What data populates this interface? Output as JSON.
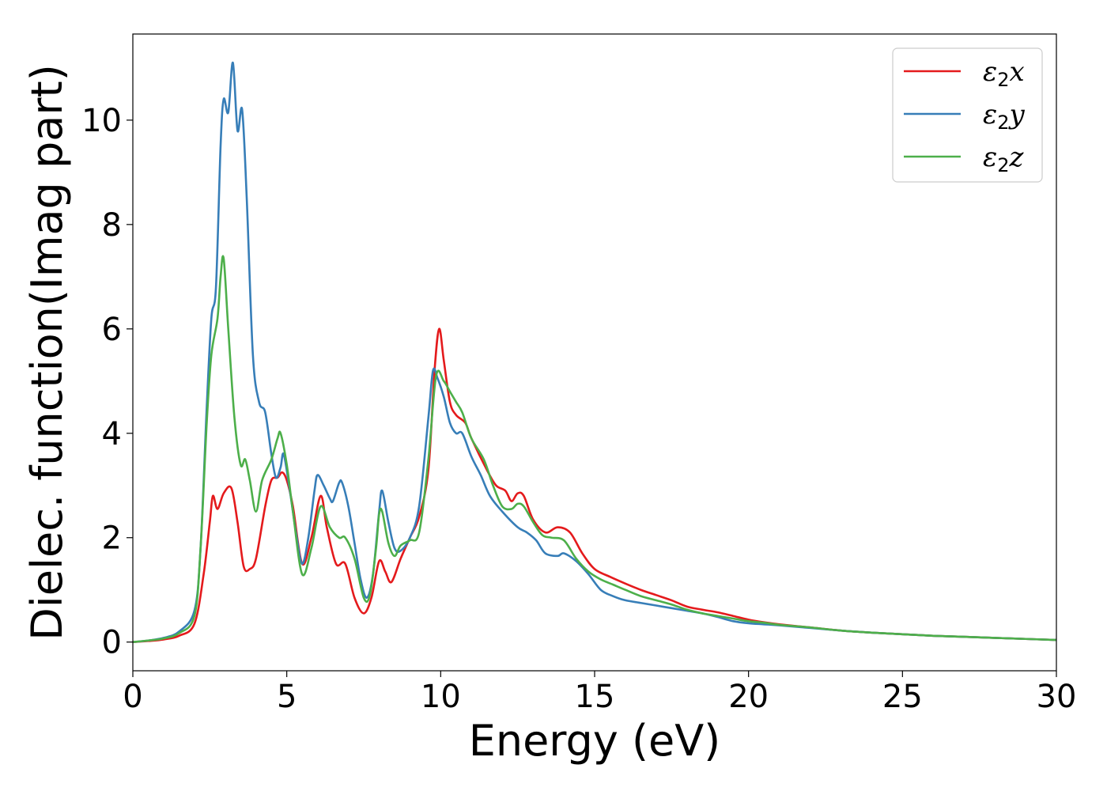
{
  "chart_data": {
    "type": "line",
    "title": "",
    "xlabel": "Energy (eV)",
    "ylabel": "Dielec. function(Imag part)",
    "xlim": [
      0,
      30
    ],
    "ylim": [
      -0.55,
      11.65
    ],
    "xticks": [
      0,
      5,
      10,
      15,
      20,
      25,
      30
    ],
    "yticks": [
      0,
      2,
      4,
      6,
      8,
      10
    ],
    "grid": false,
    "legend_position": "top-right",
    "series": [
      {
        "name": "ε2x",
        "legend": {
          "base": "ε",
          "sub": "2",
          "suffix": "x"
        },
        "color": "#e41a1c",
        "points": [
          [
            0,
            0
          ],
          [
            0.5,
            0.02
          ],
          [
            1,
            0.05
          ],
          [
            1.5,
            0.12
          ],
          [
            2,
            0.35
          ],
          [
            2.3,
            1.3
          ],
          [
            2.5,
            2.3
          ],
          [
            2.6,
            2.8
          ],
          [
            2.75,
            2.55
          ],
          [
            2.95,
            2.85
          ],
          [
            3.2,
            2.95
          ],
          [
            3.4,
            2.3
          ],
          [
            3.6,
            1.45
          ],
          [
            3.8,
            1.4
          ],
          [
            4.0,
            1.6
          ],
          [
            4.3,
            2.6
          ],
          [
            4.5,
            3.1
          ],
          [
            4.7,
            3.15
          ],
          [
            4.85,
            3.25
          ],
          [
            5.0,
            3.1
          ],
          [
            5.2,
            2.6
          ],
          [
            5.5,
            1.5
          ],
          [
            5.8,
            2.0
          ],
          [
            6.1,
            2.8
          ],
          [
            6.3,
            2.2
          ],
          [
            6.6,
            1.5
          ],
          [
            6.9,
            1.5
          ],
          [
            7.2,
            0.85
          ],
          [
            7.5,
            0.55
          ],
          [
            7.75,
            0.85
          ],
          [
            8.0,
            1.55
          ],
          [
            8.2,
            1.35
          ],
          [
            8.4,
            1.15
          ],
          [
            8.7,
            1.6
          ],
          [
            9.0,
            2.0
          ],
          [
            9.3,
            2.4
          ],
          [
            9.6,
            3.3
          ],
          [
            9.8,
            5.2
          ],
          [
            9.95,
            6.0
          ],
          [
            10.1,
            5.4
          ],
          [
            10.3,
            4.6
          ],
          [
            10.5,
            4.35
          ],
          [
            10.8,
            4.2
          ],
          [
            11.0,
            3.9
          ],
          [
            11.5,
            3.3
          ],
          [
            11.8,
            3.0
          ],
          [
            12.1,
            2.9
          ],
          [
            12.3,
            2.7
          ],
          [
            12.5,
            2.85
          ],
          [
            12.7,
            2.8
          ],
          [
            13.0,
            2.35
          ],
          [
            13.4,
            2.1
          ],
          [
            13.8,
            2.2
          ],
          [
            14.2,
            2.1
          ],
          [
            14.6,
            1.7
          ],
          [
            15.0,
            1.4
          ],
          [
            15.5,
            1.25
          ],
          [
            16.0,
            1.12
          ],
          [
            16.5,
            1.0
          ],
          [
            17.0,
            0.9
          ],
          [
            17.5,
            0.8
          ],
          [
            18.0,
            0.68
          ],
          [
            18.5,
            0.62
          ],
          [
            19.0,
            0.57
          ],
          [
            19.5,
            0.5
          ],
          [
            20.0,
            0.43
          ],
          [
            20.5,
            0.38
          ],
          [
            21.0,
            0.34
          ],
          [
            22.0,
            0.28
          ],
          [
            23.0,
            0.22
          ],
          [
            24.0,
            0.18
          ],
          [
            25.0,
            0.15
          ],
          [
            26.0,
            0.12
          ],
          [
            27.0,
            0.1
          ],
          [
            28.0,
            0.08
          ],
          [
            29.0,
            0.06
          ],
          [
            30.0,
            0.04
          ]
        ]
      },
      {
        "name": "ε2y",
        "legend": {
          "base": "ε",
          "sub": "2",
          "suffix": "y"
        },
        "color": "#377eb8",
        "points": [
          [
            0,
            0
          ],
          [
            0.5,
            0.03
          ],
          [
            1,
            0.08
          ],
          [
            1.5,
            0.2
          ],
          [
            2,
            0.6
          ],
          [
            2.2,
            1.8
          ],
          [
            2.4,
            4.5
          ],
          [
            2.55,
            6.2
          ],
          [
            2.7,
            6.8
          ],
          [
            2.85,
            9.5
          ],
          [
            2.95,
            10.4
          ],
          [
            3.1,
            10.15
          ],
          [
            3.25,
            11.1
          ],
          [
            3.4,
            9.8
          ],
          [
            3.55,
            10.2
          ],
          [
            3.7,
            8.5
          ],
          [
            3.9,
            5.5
          ],
          [
            4.1,
            4.6
          ],
          [
            4.3,
            4.4
          ],
          [
            4.5,
            3.6
          ],
          [
            4.65,
            3.15
          ],
          [
            4.8,
            3.35
          ],
          [
            4.9,
            3.6
          ],
          [
            5.1,
            2.9
          ],
          [
            5.3,
            2.1
          ],
          [
            5.5,
            1.5
          ],
          [
            5.7,
            2.0
          ],
          [
            5.9,
            2.9
          ],
          [
            6.0,
            3.2
          ],
          [
            6.2,
            3.0
          ],
          [
            6.4,
            2.75
          ],
          [
            6.5,
            2.7
          ],
          [
            6.7,
            3.05
          ],
          [
            6.8,
            3.05
          ],
          [
            7.0,
            2.6
          ],
          [
            7.2,
            1.9
          ],
          [
            7.4,
            1.2
          ],
          [
            7.6,
            0.85
          ],
          [
            7.8,
            1.3
          ],
          [
            8.0,
            2.5
          ],
          [
            8.1,
            2.9
          ],
          [
            8.3,
            2.3
          ],
          [
            8.5,
            1.8
          ],
          [
            8.7,
            1.75
          ],
          [
            9.0,
            2.0
          ],
          [
            9.3,
            2.6
          ],
          [
            9.6,
            4.3
          ],
          [
            9.75,
            5.2
          ],
          [
            9.9,
            5.05
          ],
          [
            10.1,
            4.7
          ],
          [
            10.3,
            4.2
          ],
          [
            10.5,
            4.0
          ],
          [
            10.7,
            4.0
          ],
          [
            11.0,
            3.55
          ],
          [
            11.3,
            3.2
          ],
          [
            11.6,
            2.8
          ],
          [
            12.0,
            2.5
          ],
          [
            12.5,
            2.2
          ],
          [
            12.8,
            2.1
          ],
          [
            13.1,
            1.95
          ],
          [
            13.4,
            1.7
          ],
          [
            13.8,
            1.65
          ],
          [
            14.0,
            1.7
          ],
          [
            14.4,
            1.55
          ],
          [
            14.8,
            1.3
          ],
          [
            15.2,
            1.0
          ],
          [
            15.6,
            0.88
          ],
          [
            16.0,
            0.8
          ],
          [
            16.5,
            0.75
          ],
          [
            17.0,
            0.7
          ],
          [
            17.5,
            0.65
          ],
          [
            18.0,
            0.6
          ],
          [
            18.5,
            0.55
          ],
          [
            19.0,
            0.48
          ],
          [
            19.5,
            0.4
          ],
          [
            20.0,
            0.36
          ],
          [
            20.5,
            0.34
          ],
          [
            21.0,
            0.32
          ],
          [
            22.0,
            0.27
          ],
          [
            23.0,
            0.22
          ],
          [
            24.0,
            0.18
          ],
          [
            25.0,
            0.15
          ],
          [
            26.0,
            0.12
          ],
          [
            27.0,
            0.1
          ],
          [
            28.0,
            0.08
          ],
          [
            29.0,
            0.06
          ],
          [
            30.0,
            0.04
          ]
        ]
      },
      {
        "name": "ε2z",
        "legend": {
          "base": "ε",
          "sub": "2",
          "suffix": "z"
        },
        "color": "#4daf4a",
        "points": [
          [
            0,
            0
          ],
          [
            0.5,
            0.03
          ],
          [
            1,
            0.07
          ],
          [
            1.5,
            0.17
          ],
          [
            2,
            0.5
          ],
          [
            2.2,
            1.8
          ],
          [
            2.4,
            4.2
          ],
          [
            2.55,
            5.5
          ],
          [
            2.75,
            6.2
          ],
          [
            2.85,
            7.0
          ],
          [
            2.95,
            7.35
          ],
          [
            3.1,
            6.0
          ],
          [
            3.3,
            4.3
          ],
          [
            3.5,
            3.4
          ],
          [
            3.65,
            3.5
          ],
          [
            3.8,
            3.1
          ],
          [
            4.0,
            2.5
          ],
          [
            4.2,
            3.1
          ],
          [
            4.5,
            3.5
          ],
          [
            4.7,
            3.9
          ],
          [
            4.8,
            4.0
          ],
          [
            5.0,
            3.4
          ],
          [
            5.2,
            2.5
          ],
          [
            5.5,
            1.3
          ],
          [
            5.8,
            1.8
          ],
          [
            6.1,
            2.6
          ],
          [
            6.4,
            2.2
          ],
          [
            6.7,
            2.0
          ],
          [
            6.9,
            2.0
          ],
          [
            7.2,
            1.6
          ],
          [
            7.5,
            0.85
          ],
          [
            7.7,
            0.9
          ],
          [
            7.9,
            1.8
          ],
          [
            8.0,
            2.45
          ],
          [
            8.1,
            2.5
          ],
          [
            8.3,
            1.9
          ],
          [
            8.5,
            1.65
          ],
          [
            8.7,
            1.85
          ],
          [
            9.0,
            1.95
          ],
          [
            9.3,
            2.1
          ],
          [
            9.6,
            3.5
          ],
          [
            9.85,
            5.1
          ],
          [
            10.1,
            5.0
          ],
          [
            10.3,
            4.8
          ],
          [
            10.5,
            4.6
          ],
          [
            10.7,
            4.4
          ],
          [
            11.0,
            3.9
          ],
          [
            11.4,
            3.5
          ],
          [
            11.7,
            3.0
          ],
          [
            12.0,
            2.6
          ],
          [
            12.3,
            2.55
          ],
          [
            12.5,
            2.65
          ],
          [
            12.7,
            2.6
          ],
          [
            13.0,
            2.3
          ],
          [
            13.3,
            2.05
          ],
          [
            13.6,
            2.0
          ],
          [
            14.0,
            1.95
          ],
          [
            14.4,
            1.6
          ],
          [
            14.8,
            1.35
          ],
          [
            15.2,
            1.2
          ],
          [
            15.6,
            1.1
          ],
          [
            16.0,
            1.0
          ],
          [
            16.5,
            0.88
          ],
          [
            17.0,
            0.8
          ],
          [
            17.5,
            0.72
          ],
          [
            18.0,
            0.62
          ],
          [
            18.5,
            0.55
          ],
          [
            19.0,
            0.5
          ],
          [
            19.5,
            0.45
          ],
          [
            20.0,
            0.4
          ],
          [
            20.5,
            0.37
          ],
          [
            21.0,
            0.33
          ],
          [
            22.0,
            0.28
          ],
          [
            23.0,
            0.22
          ],
          [
            24.0,
            0.18
          ],
          [
            25.0,
            0.15
          ],
          [
            26.0,
            0.12
          ],
          [
            27.0,
            0.1
          ],
          [
            28.0,
            0.08
          ],
          [
            29.0,
            0.06
          ],
          [
            30.0,
            0.04
          ]
        ]
      }
    ]
  }
}
